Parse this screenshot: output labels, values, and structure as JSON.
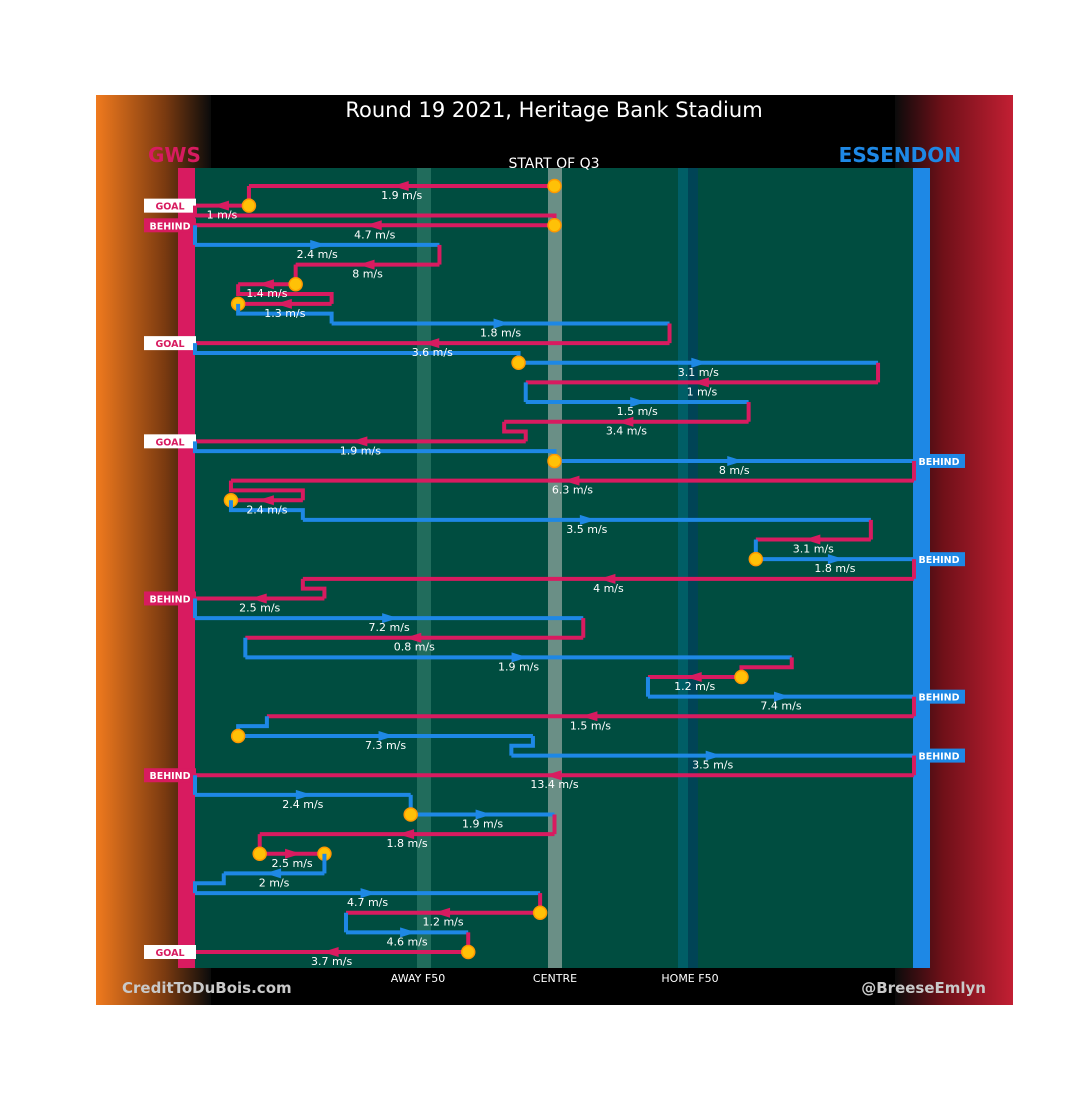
{
  "chart_data": {
    "type": "chain-flow",
    "title": "Round 19 2021, Heritage Bank Stadium",
    "subtitle": "START OF Q3",
    "teams": {
      "away": {
        "name": "GWS",
        "color": "#d81b60"
      },
      "home": {
        "name": "ESSENDON",
        "color": "#1e88e5"
      }
    },
    "x_axis_labels": {
      "away_f50": "AWAY F50",
      "centre": "CENTRE",
      "home_f50": "HOME F50"
    },
    "x_scale": {
      "away_goal": 0,
      "away_f50": 0.31,
      "centre": 0.5,
      "home_f50": 0.69,
      "home_goal": 1
    },
    "credits": {
      "left": "CreditToDuBois.com",
      "right": "@BreeseEmlyn"
    },
    "chains": [
      {
        "speed_label": "1.9 m/s",
        "team": "GWS",
        "start": 0.5,
        "end": 0.075,
        "start_type": "turnover"
      },
      {
        "speed_label": "1 m/s",
        "team": "GWS",
        "start": 0.075,
        "end": 0.0,
        "start_type": "turnover",
        "end_label": "GOAL"
      },
      {
        "speed_label": "4.7 m/s",
        "team": "GWS",
        "start": 0.5,
        "end": 0.0,
        "start_type": "turnover",
        "end_label": "BEHIND"
      },
      {
        "speed_label": "2.4 m/s",
        "team": "ESS",
        "start": 0.0,
        "end": 0.34
      },
      {
        "speed_label": "8 m/s",
        "team": "GWS",
        "start": 0.34,
        "end": 0.14
      },
      {
        "speed_label": "1.4 m/s",
        "team": "GWS",
        "start": 0.14,
        "end": 0.06,
        "start_type": "turnover"
      },
      {
        "speed_label": "1.3 m/s",
        "team": "GWS",
        "start": 0.19,
        "end": 0.06,
        "end_type": "turnover"
      },
      {
        "speed_label": "1.8 m/s",
        "team": "ESS",
        "start": 0.19,
        "end": 0.66
      },
      {
        "speed_label": "3.6 m/s",
        "team": "GWS",
        "start": 0.66,
        "end": 0.0,
        "end_label": "GOAL"
      },
      {
        "speed_label": "3.1 m/s",
        "team": "ESS",
        "start": 0.45,
        "end": 0.95,
        "start_type": "turnover"
      },
      {
        "speed_label": "1 m/s",
        "team": "GWS",
        "start": 0.95,
        "end": 0.46
      },
      {
        "speed_label": "1.5 m/s",
        "team": "ESS",
        "start": 0.46,
        "end": 0.77
      },
      {
        "speed_label": "3.4 m/s",
        "team": "GWS",
        "start": 0.77,
        "end": 0.43
      },
      {
        "speed_label": "1.9 m/s",
        "team": "GWS",
        "start": 0.46,
        "end": 0.0,
        "end_label": "GOAL"
      },
      {
        "speed_label": "8 m/s",
        "team": "ESS",
        "start": 0.5,
        "end": 1.0,
        "start_type": "turnover",
        "end_label": "BEHIND"
      },
      {
        "speed_label": "6.3 m/s",
        "team": "GWS",
        "start": 1.0,
        "end": 0.05
      },
      {
        "speed_label": "2.4 m/s",
        "team": "GWS",
        "start": 0.15,
        "end": 0.05,
        "end_type": "turnover"
      },
      {
        "speed_label": "3.5 m/s",
        "team": "ESS",
        "start": 0.15,
        "end": 0.94
      },
      {
        "speed_label": "3.1 m/s",
        "team": "GWS",
        "start": 0.94,
        "end": 0.78
      },
      {
        "speed_label": "1.8 m/s",
        "team": "ESS",
        "start": 0.78,
        "end": 1.0,
        "start_type": "turnover",
        "end_label": "BEHIND"
      },
      {
        "speed_label": "4 m/s",
        "team": "GWS",
        "start": 1.0,
        "end": 0.15
      },
      {
        "speed_label": "2.5 m/s",
        "team": "GWS",
        "start": 0.18,
        "end": 0.0,
        "end_label": "BEHIND"
      },
      {
        "speed_label": "7.2 m/s",
        "team": "ESS",
        "start": 0.0,
        "end": 0.54
      },
      {
        "speed_label": "0.8 m/s",
        "team": "GWS",
        "start": 0.54,
        "end": 0.07
      },
      {
        "speed_label": "1.9 m/s",
        "team": "ESS",
        "start": 0.07,
        "end": 0.83
      },
      {
        "speed_label": "1.2 m/s",
        "team": "GWS",
        "start": 0.76,
        "end": 0.63,
        "start_type": "turnover"
      },
      {
        "speed_label": "7.4 m/s",
        "team": "ESS",
        "start": 0.63,
        "end": 1.0,
        "end_label": "BEHIND"
      },
      {
        "speed_label": "1.5 m/s",
        "team": "GWS",
        "start": 1.0,
        "end": 0.1
      },
      {
        "speed_label": "7.3 m/s",
        "team": "ESS",
        "start": 0.06,
        "end": 0.47,
        "start_type": "turnover"
      },
      {
        "speed_label": "3.5 m/s",
        "team": "ESS",
        "start": 0.44,
        "end": 1.0,
        "end_label": "BEHIND"
      },
      {
        "speed_label": "13.4 m/s",
        "team": "GWS",
        "start": 1.0,
        "end": 0.0,
        "end_label": "BEHIND"
      },
      {
        "speed_label": "2.4 m/s",
        "team": "ESS",
        "start": 0.0,
        "end": 0.3
      },
      {
        "speed_label": "1.9 m/s",
        "team": "ESS",
        "start": 0.3,
        "end": 0.5,
        "start_type": "turnover"
      },
      {
        "speed_label": "1.8 m/s",
        "team": "GWS",
        "start": 0.5,
        "end": 0.09
      },
      {
        "speed_label": "2.5 m/s",
        "team": "GWS",
        "start": 0.09,
        "end": 0.18,
        "start_type": "turnover",
        "end_type": "turnover"
      },
      {
        "speed_label": "2 m/s",
        "team": "ESS",
        "start": 0.18,
        "end": 0.04
      },
      {
        "speed_label": "4.7 m/s",
        "team": "ESS",
        "start": 0.0,
        "end": 0.48
      },
      {
        "speed_label": "1.2 m/s",
        "team": "GWS",
        "start": 0.48,
        "end": 0.21,
        "start_type": "turnover"
      },
      {
        "speed_label": "4.6 m/s",
        "team": "ESS",
        "start": 0.21,
        "end": 0.38
      },
      {
        "speed_label": "3.7 m/s",
        "team": "GWS",
        "start": 0.38,
        "end": 0.0,
        "start_type": "turnover",
        "end_label": "GOAL"
      }
    ]
  }
}
